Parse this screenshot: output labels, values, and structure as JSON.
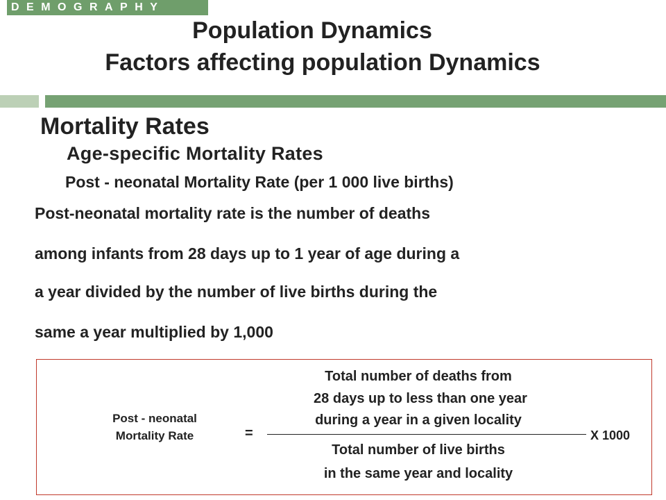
{
  "header": {
    "badge": "DEMOGRAPHY",
    "title_line1": "Population Dynamics",
    "title_line2": "Factors affecting population Dynamics"
  },
  "section": {
    "heading": "Mortality Rates",
    "subheading": "Age-specific Mortality Rates",
    "topic": "Post - neonatal Mortality Rate (per 1 000 live births)"
  },
  "definition": {
    "lines": [
      "Post-neonatal mortality rate is the number of deaths",
      "among infants from 28 days up to 1 year of age during a",
      "a year divided by the number of live births during the",
      "same a year multiplied by 1,000"
    ]
  },
  "formula": {
    "label_line1": "Post - neonatal",
    "label_line2": "Mortality Rate",
    "equals": "=",
    "numerator": [
      "Total number of deaths from",
      "28 days up to less than one year",
      "during a year in a given locality"
    ],
    "denominator": [
      "Total number of live births",
      "in the same year and locality"
    ],
    "multiplier": "X 1000"
  },
  "colors": {
    "badge": "#6f9e6b",
    "bar_dark": "#76a273",
    "bar_light": "#bcd0b6",
    "box_border": "#c0392b"
  }
}
